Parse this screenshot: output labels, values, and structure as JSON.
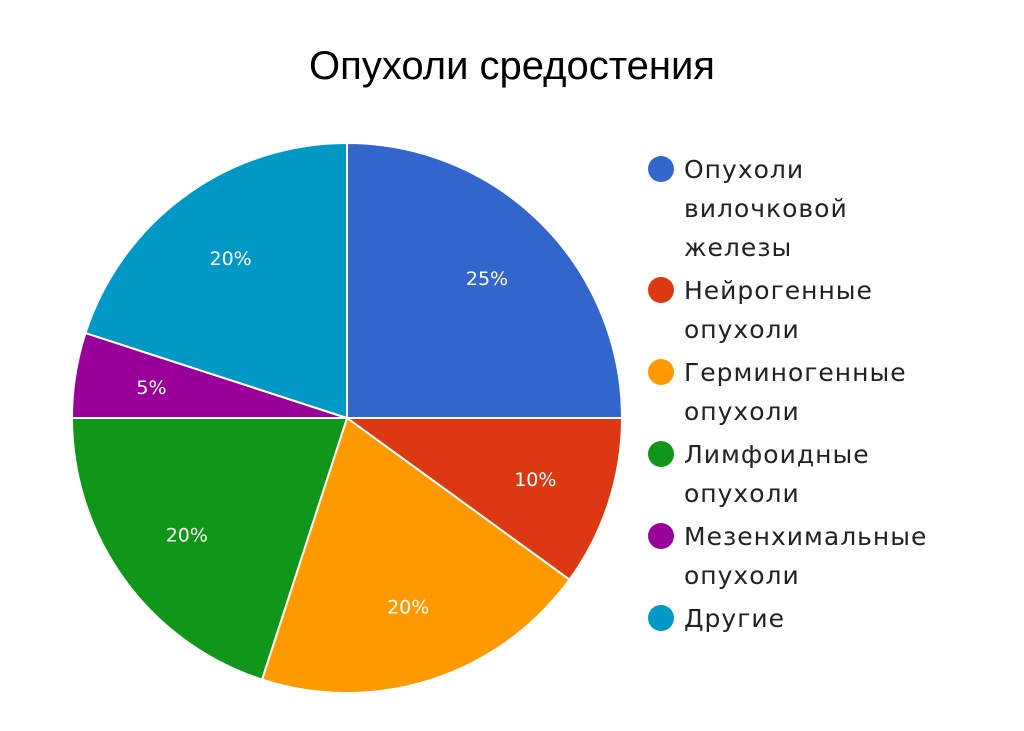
{
  "title": "Опухоли средостения",
  "chart_data": {
    "type": "pie",
    "title": "Опухоли средостения",
    "categories": [
      "Опухоли вилочковой железы",
      "Нейрогенные опухоли",
      "Герминогенные опухоли",
      "Лимфоидные опухоли",
      "Мезенхимальные опухоли",
      "Другие"
    ],
    "values": [
      25,
      10,
      20,
      20,
      5,
      20
    ],
    "labels": [
      "25%",
      "10%",
      "20%",
      "20%",
      "5%",
      "20%"
    ],
    "colors": [
      "#3366cc",
      "#dc3912",
      "#ff9900",
      "#109618",
      "#990099",
      "#0099c6"
    ],
    "legend_position": "right",
    "start_angle_deg": 0,
    "direction": "clockwise"
  },
  "legend": [
    {
      "label": "Опухоли\nвилочковой\nжелезы",
      "color": "#3366cc"
    },
    {
      "label": "Нейрогенные\nопухоли",
      "color": "#dc3912"
    },
    {
      "label": "Герминогенные\nопухоли",
      "color": "#ff9900"
    },
    {
      "label": "Лимфоидные\nопухоли",
      "color": "#109618"
    },
    {
      "label": "Мезенхимальные\nопухоли",
      "color": "#990099"
    },
    {
      "label": "Другие",
      "color": "#0099c6"
    }
  ]
}
